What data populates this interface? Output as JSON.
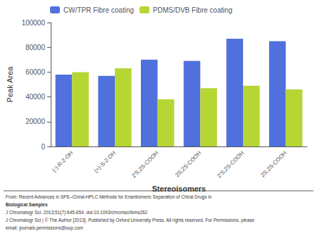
{
  "chart_data": {
    "type": "bar",
    "categories": [
      "(-)-R-2-OH",
      "(+)-S-2-OH",
      "2'S,2S-COOH",
      "2S,2S-COOH",
      "2'S,2S-COOH",
      "2S,2S-COOH"
    ],
    "series": [
      {
        "name": "CW/TPR Fibre coating",
        "values": [
          58000,
          57000,
          70000,
          69000,
          87000,
          85000
        ]
      },
      {
        "name": "PDMS/DVB Fibre coating",
        "values": [
          60000,
          63000,
          38000,
          47000,
          49000,
          46000
        ]
      }
    ],
    "x_label": "Stereoisomers",
    "y_label": "Peak Area",
    "ylim": [
      0,
      100000
    ],
    "yticks": [
      0,
      20000,
      40000,
      60000,
      80000,
      100000
    ],
    "grid": false,
    "legend": "upper left",
    "annotations": [
      "From: Recent Advances in SPE–Chiral-HPLC Methods for Enantiomeric Separation of Chiral Drugs in",
      "Biological Samples",
      "J Chromatogr Sci. 2013;51(7):645-654. doi:10.1093/chromsci/bms262",
      "J Chromatogr Sci | © The Author [2013]. Published by Oxford University Press. All rights reserved. For Permissions, please",
      "email: journals.permissions@oup.com"
    ]
  }
}
